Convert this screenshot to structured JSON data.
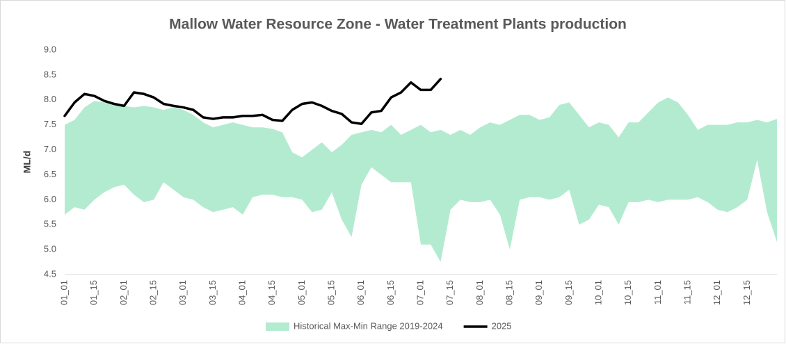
{
  "chart_data": {
    "type": "line",
    "title": "Mallow Water Resource Zone - Water Treatment Plants production",
    "y_label": "ML/d",
    "categories": [
      "01_01",
      null,
      null,
      "01_15",
      null,
      null,
      "02_01",
      null,
      null,
      "02_15",
      null,
      null,
      "03_01",
      null,
      null,
      "03_15",
      null,
      null,
      "04_01",
      null,
      null,
      "04_15",
      null,
      null,
      "05_01",
      null,
      null,
      "05_15",
      null,
      null,
      "06_01",
      null,
      null,
      "06_15",
      null,
      null,
      "07_01",
      null,
      null,
      "07_15",
      null,
      null,
      "08_01",
      null,
      null,
      "08_15",
      null,
      null,
      "09_01",
      null,
      null,
      "09_15",
      null,
      null,
      "10_01",
      null,
      null,
      "10_15",
      null,
      null,
      "11_01",
      null,
      null,
      "11_15",
      null,
      null,
      "12_01",
      null,
      null,
      "12_15",
      null,
      null,
      null
    ],
    "ylim": [
      4.5,
      9.0
    ],
    "yticks": [
      {
        "value": 4.5,
        "label": "4.5"
      },
      {
        "value": 5,
        "label": "5.0"
      },
      5.5,
      {
        "value": 6,
        "label": "6.0"
      },
      6.5,
      {
        "value": 7,
        "label": "7.0"
      },
      7.5,
      {
        "value": 8,
        "label": "8.0"
      },
      8.5,
      {
        "value": 9,
        "label": "9.0"
      }
    ],
    "grid": false,
    "legend": "bottom",
    "series": [
      {
        "name": "Historical Max-Min Range 2019-2024",
        "type": "range",
        "color": "#b3ebd1",
        "upper": [
          7.5,
          7.6,
          7.85,
          7.98,
          7.95,
          7.9,
          7.88,
          7.85,
          7.88,
          7.85,
          7.8,
          7.85,
          7.8,
          7.7,
          7.55,
          7.45,
          7.5,
          7.55,
          7.5,
          7.45,
          7.45,
          7.42,
          7.35,
          6.95,
          6.85,
          7.0,
          7.15,
          6.95,
          7.1,
          7.3,
          7.35,
          7.4,
          7.35,
          7.5,
          7.3,
          7.4,
          7.5,
          7.35,
          7.4,
          7.3,
          7.4,
          7.3,
          7.45,
          7.55,
          7.5,
          7.6,
          7.7,
          7.7,
          7.6,
          7.65,
          7.9,
          7.95,
          7.7,
          7.45,
          7.55,
          7.5,
          7.25,
          7.55,
          7.55,
          7.75,
          7.95,
          8.05,
          7.95,
          7.7,
          7.4,
          7.5,
          7.5,
          7.5,
          7.55,
          7.55,
          7.6,
          7.55,
          7.62
        ],
        "lower": [
          5.7,
          5.85,
          5.8,
          6.0,
          6.15,
          6.25,
          6.3,
          6.1,
          5.95,
          6.0,
          6.35,
          6.2,
          6.05,
          6.0,
          5.85,
          5.75,
          5.8,
          5.85,
          5.7,
          6.05,
          6.1,
          6.1,
          6.05,
          6.05,
          6.0,
          5.75,
          5.8,
          6.15,
          5.6,
          5.25,
          6.3,
          6.65,
          6.5,
          6.35,
          6.35,
          6.35,
          5.1,
          5.1,
          4.75,
          5.8,
          6.0,
          5.95,
          5.95,
          6.0,
          5.7,
          5.0,
          6.0,
          6.05,
          6.05,
          6.0,
          6.05,
          6.2,
          5.5,
          5.6,
          5.9,
          5.85,
          5.5,
          5.95,
          5.95,
          6.0,
          5.95,
          6.0,
          6.0,
          6.0,
          6.05,
          5.95,
          5.8,
          5.75,
          5.85,
          6.0,
          6.8,
          5.75,
          5.15
        ]
      },
      {
        "name": "2025",
        "color": "#000000",
        "values": [
          7.68,
          7.95,
          8.12,
          8.08,
          7.98,
          7.92,
          7.88,
          8.15,
          8.12,
          8.05,
          7.92,
          7.88,
          7.85,
          7.8,
          7.65,
          7.62,
          7.65,
          7.65,
          7.68,
          7.68,
          7.7,
          7.6,
          7.58,
          7.8,
          7.92,
          7.95,
          7.88,
          7.78,
          7.72,
          7.55,
          7.52,
          7.75,
          7.78,
          8.05,
          8.15,
          8.35,
          8.2,
          8.2,
          8.42,
          null,
          null,
          null,
          null,
          null,
          null,
          null,
          null,
          null,
          null,
          null,
          null,
          null,
          null,
          null,
          null,
          null,
          null,
          null,
          null,
          null,
          null,
          null,
          null,
          null,
          null,
          null,
          null,
          null,
          null,
          null,
          null,
          null,
          null
        ]
      }
    ]
  }
}
